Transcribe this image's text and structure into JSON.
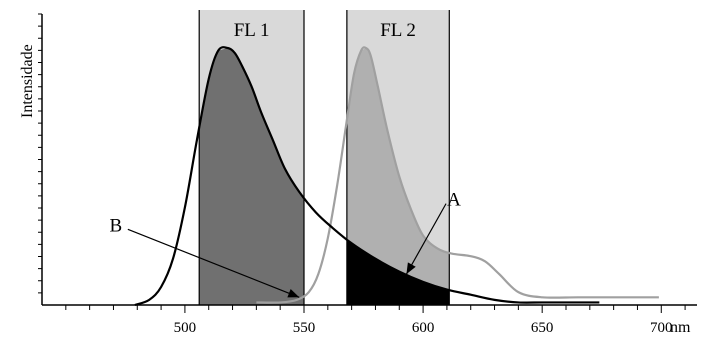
{
  "chart_data": {
    "type": "area",
    "title": "",
    "xlabel": "nm",
    "ylabel": "Intensidade",
    "xlim": [
      440,
      715
    ],
    "ylim": [
      0,
      1.1
    ],
    "x_ticks": [
      500,
      550,
      600,
      650,
      700
    ],
    "x_tick_labels": [
      "500",
      "550",
      "600",
      "650",
      "700"
    ],
    "x_minor_step": 10,
    "y_minor_count": 24,
    "grid": false,
    "colors": {
      "band_bg": "#d9d9d9",
      "fl1_fill": "#707070",
      "fl2_fill": "#b0b0b0",
      "overlap_fill": "#000000",
      "green_line": "#000000",
      "orange_line": "#a0a0a0"
    },
    "bands": [
      {
        "name": "FL 1",
        "x_start": 506,
        "x_end": 550
      },
      {
        "name": "FL 2",
        "x_start": 568,
        "x_end": 611
      }
    ],
    "series": [
      {
        "x": [
          479,
          485,
          490,
          495,
          500,
          505,
          510,
          514,
          518,
          521,
          524,
          528,
          532,
          537,
          542,
          548,
          555,
          562,
          570,
          580,
          590,
          600,
          610,
          620,
          630,
          640,
          650,
          660,
          674
        ],
        "values": [
          0.0,
          0.02,
          0.07,
          0.18,
          0.38,
          0.64,
          0.88,
          0.99,
          1.0,
          0.98,
          0.93,
          0.85,
          0.75,
          0.64,
          0.53,
          0.44,
          0.36,
          0.3,
          0.24,
          0.18,
          0.13,
          0.09,
          0.06,
          0.04,
          0.02,
          0.01,
          0.01,
          0.01,
          0.01
        ]
      },
      {
        "x": [
          530,
          540,
          547,
          552,
          556,
          560,
          564,
          568,
          571,
          574,
          576,
          578,
          581,
          585,
          590,
          595,
          600,
          606,
          612,
          620,
          626,
          632,
          640,
          650,
          665,
          680,
          699
        ],
        "values": [
          0.01,
          0.01,
          0.02,
          0.05,
          0.12,
          0.26,
          0.47,
          0.72,
          0.9,
          0.99,
          1.0,
          0.97,
          0.85,
          0.68,
          0.5,
          0.37,
          0.27,
          0.22,
          0.2,
          0.19,
          0.17,
          0.12,
          0.05,
          0.03,
          0.03,
          0.03,
          0.03
        ]
      }
    ],
    "annotations": [
      {
        "label": "A",
        "text_x": 613,
        "text_y": 0.41,
        "arrow_to_x": 593,
        "arrow_to_y": 0.12
      },
      {
        "label": "B",
        "text_x": 471,
        "text_y": 0.31,
        "arrow_to_x": 548,
        "arrow_to_y": 0.03
      }
    ]
  }
}
